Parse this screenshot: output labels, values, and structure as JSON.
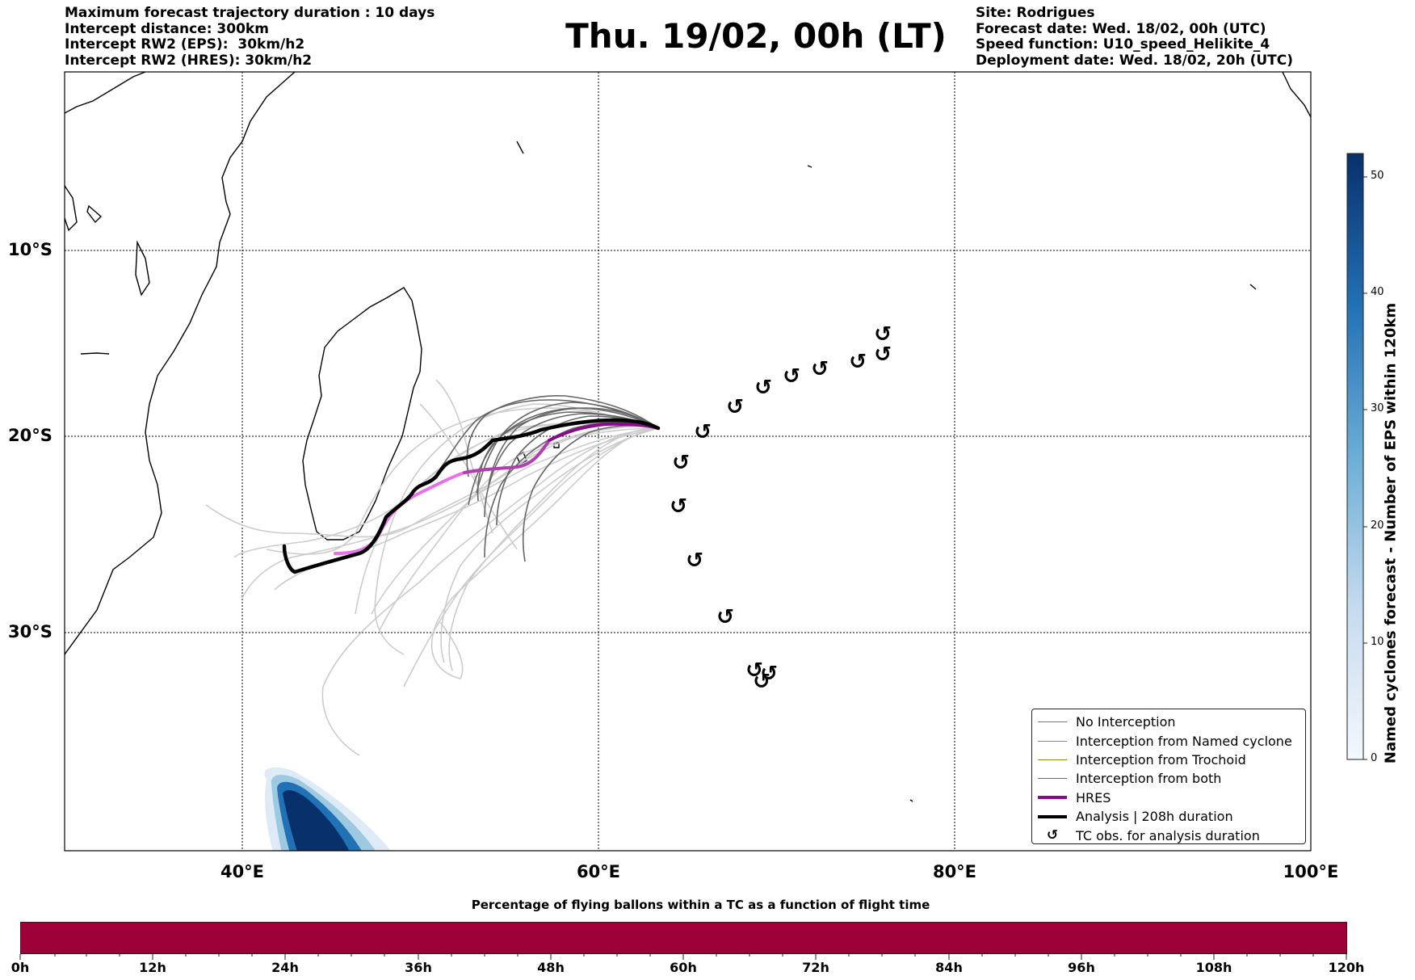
{
  "header": {
    "title": "Thu. 19/02, 00h (LT)",
    "left_lines": [
      "Maximum forecast trajectory duration : 10 days",
      "Intercept distance: 300km",
      "Intercept RW2 (EPS):  30km/h2",
      "Intercept RW2 (HRES): 30km/h2"
    ],
    "right_lines": [
      "Site: Rodrigues",
      "Forecast date: Wed. 18/02, 00h (UTC)",
      "Speed function: U10_speed_Helikite_4",
      "Deployment date: Wed. 18/02, 20h (UTC)"
    ]
  },
  "map": {
    "lat_labels": [
      "10°S",
      "20°S",
      "30°S"
    ],
    "lon_labels": [
      "40°E",
      "60°E",
      "80°E",
      "100°E"
    ],
    "grid": "dotted",
    "colors": {
      "coast": "#000000",
      "no_interception": "#777777",
      "ensemble_light": "#cccccc",
      "hres_dark": "#8b0a8b",
      "hres_light": "#e870e8",
      "analysis": "#000000",
      "density": "#08306b"
    }
  },
  "legend": {
    "items": [
      {
        "label": "No Interception",
        "color": "#777777",
        "style": "thin"
      },
      {
        "label": "Interception from Named cyclone",
        "color": "#ff5a1f",
        "style": "thin"
      },
      {
        "label": "Interception from Trochoid",
        "color": "#8a8a1a",
        "style": "thin"
      },
      {
        "label": "Interception from both",
        "color": "#1a9a1a",
        "style": "thin"
      },
      {
        "label": "HRES",
        "color": "#8b0a8b",
        "style": "thick"
      },
      {
        "label": "Analysis | 208h duration",
        "color": "#000000",
        "style": "thick"
      },
      {
        "label": "TC obs. for analysis duration",
        "color": "#000000",
        "style": "symbol"
      }
    ]
  },
  "colorbar_right": {
    "title": "Named cyclones forecast - Number of EPS within 120km",
    "ticks": [
      "0",
      "10",
      "20",
      "30",
      "40",
      "50"
    ],
    "range": [
      0,
      52
    ]
  },
  "colorbar_bottom": {
    "title": "Percentage of flying ballons within a TC as a function of flight time",
    "ticks": [
      "0h",
      "12h",
      "24h",
      "36h",
      "48h",
      "60h",
      "72h",
      "84h",
      "96h",
      "108h",
      "120h"
    ],
    "color": "#9e003a"
  }
}
